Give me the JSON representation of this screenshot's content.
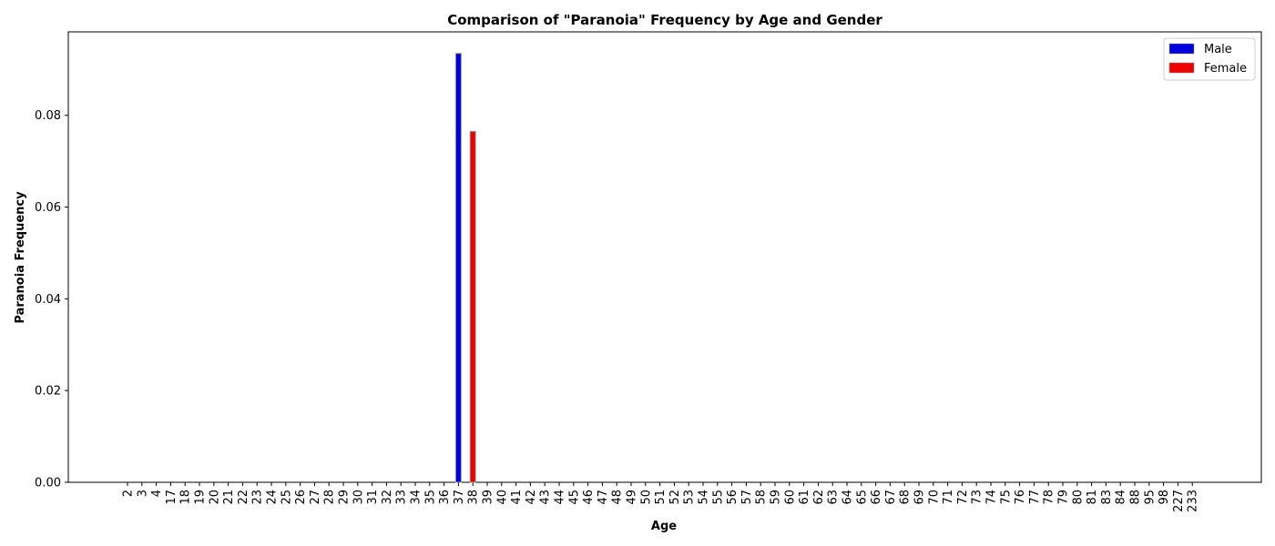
{
  "chart_data": {
    "type": "bar",
    "title": "Comparison of \"Paranoia\" Frequency by Age and Gender",
    "xlabel": "Age",
    "ylabel": "Paranoia Frequency",
    "ylim": [
      0,
      0.0982
    ],
    "yticks": [
      "0.00",
      "0.02",
      "0.04",
      "0.06",
      "0.08"
    ],
    "ytick_values": [
      0,
      0.02,
      0.04,
      0.06,
      0.08
    ],
    "categories": [
      "2",
      "3",
      "4",
      "17",
      "18",
      "19",
      "20",
      "21",
      "22",
      "23",
      "24",
      "25",
      "26",
      "27",
      "28",
      "29",
      "30",
      "31",
      "32",
      "33",
      "34",
      "35",
      "36",
      "37",
      "38",
      "39",
      "40",
      "41",
      "42",
      "43",
      "44",
      "45",
      "46",
      "47",
      "48",
      "49",
      "50",
      "51",
      "52",
      "53",
      "54",
      "55",
      "56",
      "57",
      "58",
      "59",
      "60",
      "61",
      "62",
      "63",
      "64",
      "65",
      "66",
      "67",
      "68",
      "69",
      "70",
      "71",
      "72",
      "73",
      "74",
      "75",
      "76",
      "77",
      "78",
      "79",
      "80",
      "81",
      "83",
      "84",
      "88",
      "95",
      "98",
      "227",
      "233"
    ],
    "series": [
      {
        "name": "Male",
        "color": "#0000dd",
        "category": "37",
        "value": 0.0935
      },
      {
        "name": "Female",
        "color": "#ee0000",
        "category": "38",
        "value": 0.0765
      }
    ],
    "legend": "top-right",
    "grid": false
  }
}
